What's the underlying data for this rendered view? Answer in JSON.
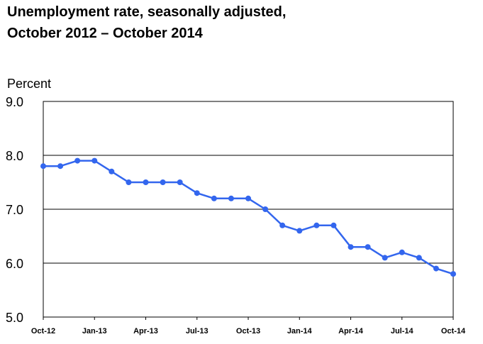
{
  "chart_data": {
    "type": "line",
    "title_line1": "Unemployment rate, seasonally adjusted,",
    "title_line2": "October 2012 – October 2014",
    "ylabel": "Percent",
    "xlabel": "",
    "ylim": [
      5.0,
      9.0
    ],
    "yticks": [
      "5.0",
      "6.0",
      "7.0",
      "8.0",
      "9.0"
    ],
    "ytick_values": [
      5.0,
      6.0,
      7.0,
      8.0,
      9.0
    ],
    "gridlines": [
      6.0,
      7.0,
      8.0
    ],
    "xtick_labels": [
      "Oct-12",
      "Jan-13",
      "Apr-13",
      "Jul-13",
      "Oct-13",
      "Jan-14",
      "Apr-14",
      "Jul-14",
      "Oct-14"
    ],
    "xtick_indices": [
      0,
      3,
      6,
      9,
      12,
      15,
      18,
      21,
      24
    ],
    "categories": [
      "Oct-12",
      "Nov-12",
      "Dec-12",
      "Jan-13",
      "Feb-13",
      "Mar-13",
      "Apr-13",
      "May-13",
      "Jun-13",
      "Jul-13",
      "Aug-13",
      "Sep-13",
      "Oct-13",
      "Nov-13",
      "Dec-13",
      "Jan-14",
      "Feb-14",
      "Mar-14",
      "Apr-14",
      "May-14",
      "Jun-14",
      "Jul-14",
      "Aug-14",
      "Sep-14",
      "Oct-14"
    ],
    "series": [
      {
        "color": "#3366ee",
        "values": [
          7.8,
          7.8,
          7.9,
          7.9,
          7.7,
          7.5,
          7.5,
          7.5,
          7.5,
          7.3,
          7.2,
          7.2,
          7.2,
          7.0,
          6.7,
          6.6,
          6.7,
          6.7,
          6.3,
          6.3,
          6.1,
          6.2,
          6.1,
          5.9,
          5.8
        ]
      }
    ],
    "grid": true,
    "legend": "none"
  }
}
